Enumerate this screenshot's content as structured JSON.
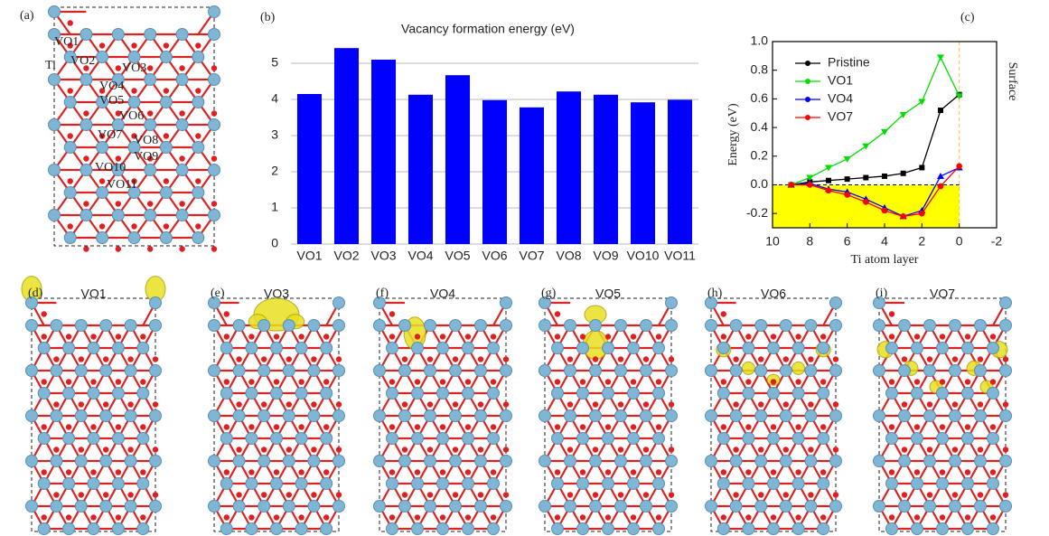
{
  "panels": {
    "a": {
      "label": "(a)",
      "annotations": [
        "VO1",
        "Ti",
        "VO2",
        "VO3",
        "VO4",
        "VO5",
        "VO6",
        "VO7",
        "VO8",
        "VO9",
        "VO10",
        "VO11"
      ]
    },
    "lower": [
      {
        "label": "(d)",
        "title": "VO1"
      },
      {
        "label": "(e)",
        "title": "VO3"
      },
      {
        "label": "(f)",
        "title": "VO4"
      },
      {
        "label": "(g)",
        "title": "VO5"
      },
      {
        "label": "(h)",
        "title": "VO6"
      },
      {
        "label": "(i)",
        "title": "VO7"
      }
    ]
  },
  "chart_data": [
    {
      "type": "bar",
      "panel_label": "(b)",
      "title": "Vacancy formation energy (eV)",
      "categories": [
        "VO1",
        "VO2",
        "VO3",
        "VO4",
        "VO5",
        "VO6",
        "VO7",
        "VO8",
        "VO9",
        "VO10",
        "VO11"
      ],
      "values": [
        4.15,
        5.42,
        5.1,
        4.13,
        4.67,
        3.98,
        3.78,
        4.22,
        4.13,
        3.92,
        3.99
      ],
      "color": "#0000ff",
      "ylim": [
        0,
        6.2
      ],
      "yticks": [
        0,
        1,
        2,
        3,
        4,
        5
      ],
      "grid": true
    },
    {
      "type": "line",
      "panel_label": "(c)",
      "xlabel": "Ti atom layer",
      "ylabel": "Energy (eV)",
      "annotation": "Surface",
      "shade_color": "#ffff00",
      "vline_color": "#f5c242",
      "legend": "upper-left",
      "x": [
        9,
        8,
        7,
        6,
        5,
        4,
        3,
        2,
        1,
        0
      ],
      "series": [
        {
          "name": "Pristine",
          "color": "#000000",
          "marker": "square",
          "values": [
            0,
            0.02,
            0.03,
            0.04,
            0.05,
            0.06,
            0.08,
            0.12,
            0.52,
            0.63
          ]
        },
        {
          "name": "VO1",
          "color": "#00e000",
          "marker": "triangle-down",
          "values": [
            0,
            0.05,
            0.12,
            0.18,
            0.27,
            0.37,
            0.49,
            0.58,
            0.89,
            0.62
          ]
        },
        {
          "name": "VO4",
          "color": "#0000ff",
          "marker": "triangle-up",
          "values": [
            0,
            0.01,
            -0.03,
            -0.05,
            -0.1,
            -0.16,
            -0.22,
            -0.18,
            0.06,
            0.12
          ]
        },
        {
          "name": "VO7",
          "color": "#ff0000",
          "marker": "circle",
          "values": [
            0,
            0,
            -0.04,
            -0.07,
            -0.12,
            -0.18,
            -0.22,
            -0.2,
            -0.01,
            0.13
          ]
        }
      ],
      "xlim": [
        10,
        -2
      ],
      "xticks": [
        10,
        8,
        6,
        4,
        2,
        0,
        -2
      ],
      "ylim": [
        -0.3,
        1.0
      ],
      "yticks": [
        -0.2,
        {
          "value": 0,
          "label": "0.0"
        },
        0.2,
        0.4,
        0.6,
        0.8,
        {
          "value": 1,
          "label": "1.0"
        }
      ]
    }
  ]
}
